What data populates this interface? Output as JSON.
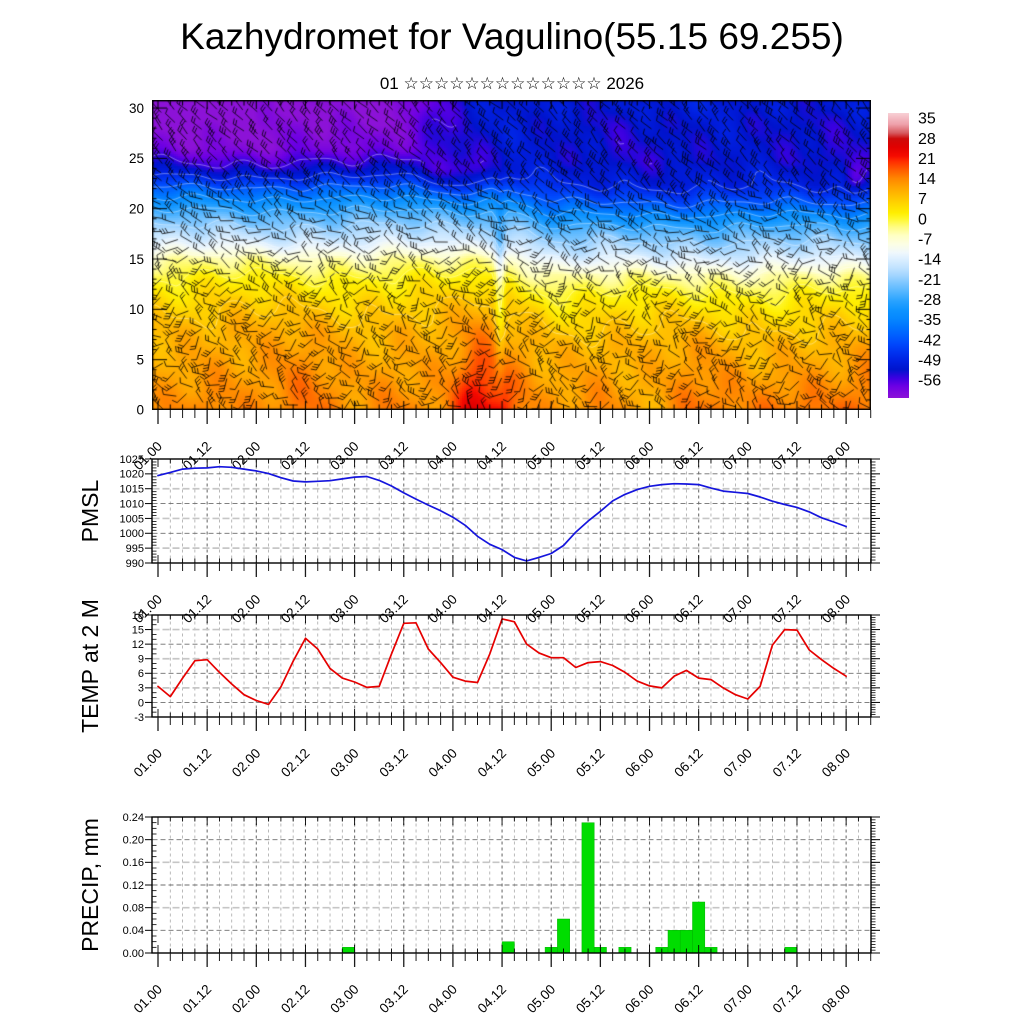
{
  "title": "Kazhydromet for Vagulino(55.15 69.255)",
  "subtitle": "01 ☆☆☆☆☆☆☆☆☆☆☆☆☆ 2026",
  "x_axis": {
    "tick_labels": [
      "01.00",
      "01.12",
      "02.00",
      "02.12",
      "03.00",
      "03.12",
      "04.00",
      "04.12",
      "05.00",
      "05.12",
      "06.00",
      "06.12",
      "07.00",
      "07.12",
      "08.00"
    ],
    "label_interval_hours": 12,
    "minor_interval_hours": 3,
    "labeled_span_hours": 168
  },
  "chart_data": [
    {
      "id": "cross-section",
      "type": "heatmap",
      "title": "",
      "ylim": [
        0,
        30.8
      ],
      "yticks": [
        0,
        5,
        10,
        15,
        20,
        25,
        30
      ],
      "legend_position": "right",
      "colorbar_ticks": [
        35,
        28,
        21,
        14,
        7,
        0,
        -7,
        -14,
        -21,
        -28,
        -35,
        -42,
        -49,
        -56
      ],
      "palette": [
        [
          37,
          [
            248,
            208,
            214
          ]
        ],
        [
          33,
          [
            238,
            160,
            170
          ]
        ],
        [
          30,
          [
            214,
            90,
            95
          ]
        ],
        [
          28,
          [
            205,
            10,
            10
          ]
        ],
        [
          25,
          [
            225,
            0,
            0
          ]
        ],
        [
          22,
          [
            245,
            10,
            0
          ]
        ],
        [
          20,
          [
            255,
            45,
            0
          ]
        ],
        [
          17,
          [
            255,
            92,
            0
          ]
        ],
        [
          14,
          [
            255,
            134,
            0
          ]
        ],
        [
          11,
          [
            255,
            164,
            0
          ]
        ],
        [
          8,
          [
            255,
            190,
            0
          ]
        ],
        [
          5,
          [
            255,
            215,
            0
          ]
        ],
        [
          2,
          [
            255,
            238,
            0
          ]
        ],
        [
          0,
          [
            255,
            247,
            40
          ]
        ],
        [
          -3,
          [
            255,
            252,
            130
          ]
        ],
        [
          -6,
          [
            255,
            255,
            196
          ]
        ],
        [
          -9,
          [
            252,
            254,
            228
          ]
        ],
        [
          -12,
          [
            240,
            248,
            252
          ]
        ],
        [
          -14,
          [
            222,
            240,
            255
          ]
        ],
        [
          -17,
          [
            196,
            228,
            255
          ]
        ],
        [
          -20,
          [
            162,
            213,
            255
          ]
        ],
        [
          -23,
          [
            120,
            196,
            255
          ]
        ],
        [
          -26,
          [
            80,
            180,
            255
          ]
        ],
        [
          -29,
          [
            40,
            162,
            255
          ]
        ],
        [
          -32,
          [
            14,
            148,
            255
          ]
        ],
        [
          -35,
          [
            6,
            136,
            255
          ]
        ],
        [
          -38,
          [
            0,
            116,
            255
          ]
        ],
        [
          -41,
          [
            0,
            95,
            255
          ]
        ],
        [
          -44,
          [
            0,
            72,
            252
          ]
        ],
        [
          -47,
          [
            0,
            50,
            240
          ]
        ],
        [
          -50,
          [
            0,
            32,
            225
          ]
        ],
        [
          -53,
          [
            0,
            20,
            205
          ]
        ],
        [
          -56,
          [
            60,
            0,
            225
          ]
        ],
        [
          -59,
          [
            110,
            0,
            228
          ]
        ],
        [
          -63,
          [
            140,
            18,
            215
          ]
        ]
      ],
      "profile_anchors": [
        [
          0,
          13
        ],
        [
          4,
          11.5
        ],
        [
          8,
          9.5
        ],
        [
          11,
          5
        ],
        [
          13,
          1
        ],
        [
          15,
          -5
        ],
        [
          16,
          -11
        ],
        [
          17,
          -16
        ],
        [
          18,
          -20
        ],
        [
          19,
          -24
        ],
        [
          20,
          -29
        ],
        [
          21,
          -35
        ],
        [
          22,
          -41
        ],
        [
          23,
          -46
        ],
        [
          24,
          -50
        ],
        [
          26,
          -53
        ],
        [
          30,
          -56
        ]
      ],
      "features": {
        "front_hour": 83.5,
        "post_front_cooling_hours": [
          84,
          98
        ],
        "top_left_extra_cold": {
          "fade_hours": [
            50,
            75
          ],
          "amp": -8
        },
        "top_right_warming": {
          "rise_hours": [
            60,
            92
          ],
          "amp": 4.5
        },
        "cold_pockets": [
          {
            "t": 74,
            "tw": 8,
            "h": 23.5,
            "hw": 2.2,
            "amp": -7
          },
          {
            "t": 170,
            "tw": 2.5,
            "h": 23,
            "hw": 1.5,
            "amp": -6
          }
        ],
        "warm_tongue": {
          "t": 78,
          "tw": 5,
          "amp": 5.5
        },
        "front_cold_streak": {
          "tw": 1.2,
          "h": 13,
          "hw": 8,
          "amp": -9
        },
        "warm_bottom_spots": [
          {
            "t": 76,
            "tw": 7,
            "amp": 7,
            "depth": 6.5
          },
          {
            "t": 84,
            "tw": 2.5,
            "amp": 5,
            "depth": 4
          },
          {
            "t": 171,
            "tw": 10,
            "amp": 5,
            "depth": 7
          },
          {
            "t": 24,
            "tw": 9,
            "amp": 2.5,
            "depth": 7
          },
          {
            "t": 148,
            "tw": 22,
            "amp": 2,
            "depth": 5
          }
        ]
      }
    },
    {
      "id": "pmsl",
      "type": "line",
      "title": "PMSL",
      "color": "#1515dd",
      "ylim": [
        990,
        1025
      ],
      "yticks": [
        "1025",
        "1020",
        "1015",
        "1010",
        "1005",
        "1000",
        "995",
        "990"
      ],
      "light_grid_parity": 0,
      "points": [
        [
          0,
          1019.4
        ],
        [
          3,
          1020.5
        ],
        [
          6,
          1021.6
        ],
        [
          9,
          1021.9
        ],
        [
          12,
          1022.0
        ],
        [
          15,
          1022.4
        ],
        [
          18,
          1022.2
        ],
        [
          21,
          1021.6
        ],
        [
          24,
          1021.0
        ],
        [
          27,
          1020.1
        ],
        [
          30,
          1018.7
        ],
        [
          33,
          1017.6
        ],
        [
          36,
          1017.3
        ],
        [
          39,
          1017.5
        ],
        [
          42,
          1017.7
        ],
        [
          45,
          1018.3
        ],
        [
          48,
          1018.9
        ],
        [
          51,
          1019.1
        ],
        [
          54,
          1017.8
        ],
        [
          57,
          1015.9
        ],
        [
          60,
          1013.6
        ],
        [
          63,
          1011.5
        ],
        [
          66,
          1009.5
        ],
        [
          69,
          1007.6
        ],
        [
          72,
          1005.4
        ],
        [
          75,
          1002.7
        ],
        [
          78,
          999.0
        ],
        [
          81,
          996.3
        ],
        [
          84,
          994.5
        ],
        [
          87,
          991.9
        ],
        [
          90,
          990.7
        ],
        [
          93,
          991.9
        ],
        [
          96,
          993.2
        ],
        [
          99,
          995.9
        ],
        [
          102,
          1000.4
        ],
        [
          105,
          1004.1
        ],
        [
          108,
          1007.4
        ],
        [
          111,
          1010.9
        ],
        [
          114,
          1013.1
        ],
        [
          117,
          1014.7
        ],
        [
          120,
          1015.8
        ],
        [
          123,
          1016.4
        ],
        [
          126,
          1016.7
        ],
        [
          129,
          1016.6
        ],
        [
          132,
          1016.4
        ],
        [
          135,
          1015.2
        ],
        [
          138,
          1014.2
        ],
        [
          141,
          1013.8
        ],
        [
          144,
          1013.4
        ],
        [
          147,
          1012.2
        ],
        [
          150,
          1010.8
        ],
        [
          153,
          1009.7
        ],
        [
          156,
          1008.7
        ],
        [
          159,
          1007.2
        ],
        [
          162,
          1005.2
        ],
        [
          165,
          1003.8
        ],
        [
          168,
          1002.3
        ]
      ]
    },
    {
      "id": "temp",
      "type": "line",
      "title": "TEMP at 2 M",
      "color": "#e60000",
      "ylim": [
        -3,
        18
      ],
      "yticks": [
        "18",
        "15",
        "12",
        "9",
        "6",
        "3",
        "0",
        "-3"
      ],
      "light_grid_parity": 1,
      "points": [
        [
          0,
          3.3
        ],
        [
          3,
          1.2
        ],
        [
          6,
          5.0
        ],
        [
          9,
          8.6
        ],
        [
          12,
          8.8
        ],
        [
          15,
          6.2
        ],
        [
          18,
          3.8
        ],
        [
          21,
          1.6
        ],
        [
          24,
          0.4
        ],
        [
          27,
          -0.4
        ],
        [
          30,
          3.2
        ],
        [
          33,
          8.5
        ],
        [
          36,
          13.2
        ],
        [
          39,
          11.0
        ],
        [
          42,
          7.0
        ],
        [
          45,
          5.0
        ],
        [
          48,
          4.2
        ],
        [
          51,
          3.1
        ],
        [
          54,
          3.3
        ],
        [
          57,
          10.0
        ],
        [
          60,
          16.3
        ],
        [
          63,
          16.4
        ],
        [
          66,
          11.0
        ],
        [
          69,
          8.2
        ],
        [
          72,
          5.2
        ],
        [
          75,
          4.4
        ],
        [
          78,
          4.1
        ],
        [
          81,
          10.0
        ],
        [
          84,
          17.2
        ],
        [
          87,
          16.6
        ],
        [
          90,
          12.0
        ],
        [
          93,
          10.2
        ],
        [
          96,
          9.2
        ],
        [
          99,
          9.2
        ],
        [
          102,
          7.2
        ],
        [
          105,
          8.2
        ],
        [
          108,
          8.4
        ],
        [
          111,
          7.6
        ],
        [
          114,
          6.2
        ],
        [
          117,
          4.4
        ],
        [
          120,
          3.4
        ],
        [
          123,
          3.0
        ],
        [
          126,
          5.4
        ],
        [
          129,
          6.6
        ],
        [
          132,
          5.0
        ],
        [
          135,
          4.7
        ],
        [
          138,
          3.0
        ],
        [
          141,
          1.6
        ],
        [
          144,
          0.7
        ],
        [
          147,
          3.3
        ],
        [
          150,
          11.8
        ],
        [
          153,
          15.0
        ],
        [
          156,
          14.9
        ],
        [
          159,
          10.8
        ],
        [
          162,
          8.8
        ],
        [
          165,
          7.0
        ],
        [
          168,
          5.4
        ]
      ]
    },
    {
      "id": "precip",
      "type": "bar",
      "title": "PRECIP, mm",
      "color": "#00dd00",
      "bar_edge_color": "#00b400",
      "ylim": [
        0,
        0.24
      ],
      "yticks": [
        "0.24",
        "0.20",
        "0.16",
        "0.12",
        "0.08",
        "0.04",
        "0.00"
      ],
      "light_grid_parity": 0,
      "bar_width_hours": 3,
      "bars": [
        {
          "t": 46.5,
          "v": 0.01
        },
        {
          "t": 85.5,
          "v": 0.02
        },
        {
          "t": 96,
          "v": 0.01
        },
        {
          "t": 99,
          "v": 0.06
        },
        {
          "t": 105,
          "v": 0.23
        },
        {
          "t": 108,
          "v": 0.01
        },
        {
          "t": 114,
          "v": 0.01
        },
        {
          "t": 123,
          "v": 0.01
        },
        {
          "t": 126,
          "v": 0.04
        },
        {
          "t": 129,
          "v": 0.04
        },
        {
          "t": 132,
          "v": 0.09
        },
        {
          "t": 135,
          "v": 0.01
        },
        {
          "t": 154.5,
          "v": 0.01
        }
      ]
    }
  ]
}
